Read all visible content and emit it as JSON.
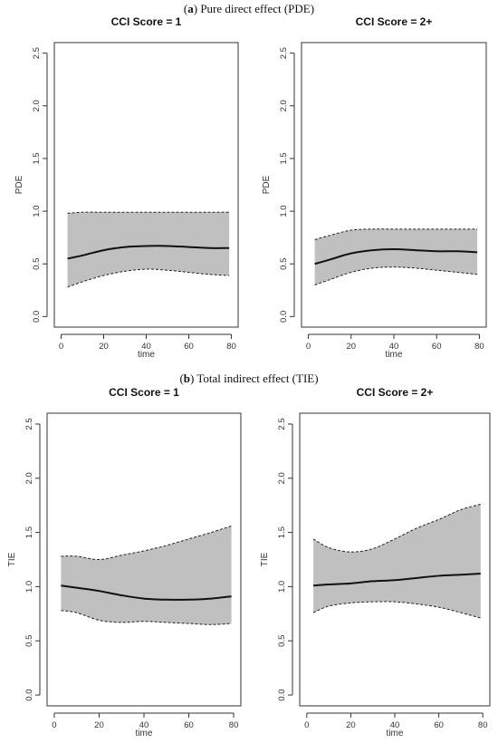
{
  "sections": [
    {
      "tag": "a",
      "prefix": "(",
      "suffix": ") Pure direct effect (PDE)"
    },
    {
      "tag": "b",
      "prefix": "(",
      "suffix": ") Total indirect effect (TIE)"
    }
  ],
  "chart_data": [
    {
      "type": "line",
      "section": "a",
      "title": "CCI Score = 1",
      "xlabel": "time",
      "ylabel": "PDE",
      "xlim": [
        0,
        80
      ],
      "ylim": [
        0,
        2.5
      ],
      "x_ticks": [
        0,
        20,
        40,
        60,
        80
      ],
      "y_ticks": [
        0.0,
        0.5,
        1.0,
        1.5,
        2.0,
        2.5
      ],
      "y_tick_labels": [
        "0.0",
        "0.5",
        "1.0",
        "1.5",
        "2.0",
        "2.5"
      ],
      "grid": false,
      "x": [
        3,
        10,
        20,
        30,
        40,
        50,
        60,
        70,
        79
      ],
      "series": [
        {
          "role": "estimate",
          "values": [
            0.55,
            0.58,
            0.63,
            0.66,
            0.67,
            0.67,
            0.66,
            0.65,
            0.65
          ]
        },
        {
          "role": "upper",
          "values": [
            0.98,
            0.99,
            0.99,
            0.99,
            0.99,
            0.99,
            0.99,
            0.99,
            0.99
          ]
        },
        {
          "role": "lower",
          "values": [
            0.28,
            0.33,
            0.39,
            0.43,
            0.45,
            0.44,
            0.42,
            0.4,
            0.39
          ]
        }
      ]
    },
    {
      "type": "line",
      "section": "a",
      "title": "CCI Score = 2+",
      "xlabel": "time",
      "ylabel": "PDE",
      "xlim": [
        0,
        80
      ],
      "ylim": [
        0,
        2.5
      ],
      "x_ticks": [
        0,
        20,
        40,
        60,
        80
      ],
      "y_ticks": [
        0.0,
        0.5,
        1.0,
        1.5,
        2.0,
        2.5
      ],
      "y_tick_labels": [
        "0.0",
        "0.5",
        "1.0",
        "1.5",
        "2.0",
        "2.5"
      ],
      "grid": false,
      "x": [
        3,
        10,
        20,
        30,
        40,
        50,
        60,
        70,
        79
      ],
      "series": [
        {
          "role": "estimate",
          "values": [
            0.5,
            0.54,
            0.6,
            0.63,
            0.64,
            0.63,
            0.62,
            0.62,
            0.61
          ]
        },
        {
          "role": "upper",
          "values": [
            0.73,
            0.77,
            0.82,
            0.83,
            0.83,
            0.83,
            0.83,
            0.83,
            0.83
          ]
        },
        {
          "role": "lower",
          "values": [
            0.3,
            0.35,
            0.42,
            0.46,
            0.47,
            0.46,
            0.44,
            0.42,
            0.4
          ]
        }
      ]
    },
    {
      "type": "line",
      "section": "b",
      "title": "CCI Score = 1",
      "xlabel": "time",
      "ylabel": "TIE",
      "xlim": [
        0,
        80
      ],
      "ylim": [
        0,
        2.5
      ],
      "x_ticks": [
        0,
        20,
        40,
        60,
        80
      ],
      "y_ticks": [
        0.0,
        0.5,
        1.0,
        1.5,
        2.0,
        2.5
      ],
      "y_tick_labels": [
        "0.0",
        "0.5",
        "1.0",
        "1.5",
        "2.0",
        "2.5"
      ],
      "grid": false,
      "x": [
        3,
        10,
        20,
        30,
        40,
        50,
        60,
        70,
        79
      ],
      "series": [
        {
          "role": "estimate",
          "values": [
            1.01,
            0.99,
            0.96,
            0.92,
            0.89,
            0.88,
            0.88,
            0.89,
            0.91
          ]
        },
        {
          "role": "upper",
          "values": [
            1.28,
            1.28,
            1.25,
            1.29,
            1.33,
            1.38,
            1.44,
            1.5,
            1.56
          ]
        },
        {
          "role": "lower",
          "values": [
            0.78,
            0.76,
            0.69,
            0.67,
            0.68,
            0.67,
            0.66,
            0.65,
            0.66
          ]
        }
      ]
    },
    {
      "type": "line",
      "section": "b",
      "title": "CCI Score = 2+",
      "xlabel": "time",
      "ylabel": "TIE",
      "xlim": [
        0,
        80
      ],
      "ylim": [
        0,
        2.5
      ],
      "x_ticks": [
        0,
        20,
        40,
        60,
        80
      ],
      "y_ticks": [
        0.0,
        0.5,
        1.0,
        1.5,
        2.0,
        2.5
      ],
      "y_tick_labels": [
        "0.0",
        "0.5",
        "1.0",
        "1.5",
        "2.0",
        "2.5"
      ],
      "grid": false,
      "x": [
        3,
        10,
        20,
        30,
        40,
        50,
        60,
        70,
        79
      ],
      "series": [
        {
          "role": "estimate",
          "values": [
            1.01,
            1.02,
            1.03,
            1.05,
            1.06,
            1.08,
            1.1,
            1.11,
            1.12
          ]
        },
        {
          "role": "upper",
          "values": [
            1.44,
            1.36,
            1.32,
            1.35,
            1.44,
            1.54,
            1.62,
            1.71,
            1.76
          ]
        },
        {
          "role": "lower",
          "values": [
            0.76,
            0.82,
            0.85,
            0.86,
            0.86,
            0.84,
            0.81,
            0.76,
            0.71
          ]
        }
      ]
    }
  ]
}
